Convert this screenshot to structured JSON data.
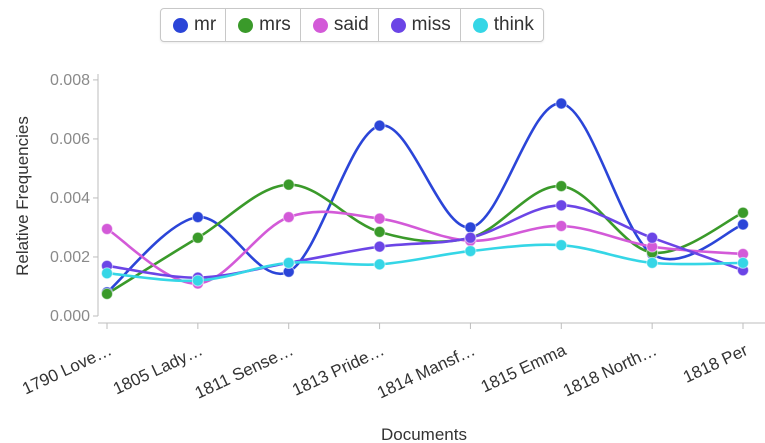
{
  "chart_data": {
    "type": "line",
    "xlabel": "Documents",
    "ylabel": "Relative Frequencies",
    "ylim": [
      0,
      0.0082
    ],
    "yticks": [
      "0.000",
      "0.002",
      "0.004",
      "0.006",
      "0.008"
    ],
    "grid": false,
    "legend_placement": "top",
    "categories": [
      "1790 Love…",
      "1805 Lady…",
      "1811 Sense…",
      "1813 Pride…",
      "1814 Mansf…",
      "1815 Emma",
      "1818 North…",
      "1818 Per"
    ],
    "series": [
      {
        "name": "mr",
        "color": "#2b45d8",
        "values": [
          0.0008,
          0.00335,
          0.0015,
          0.00645,
          0.003,
          0.0072,
          0.0021,
          0.0031
        ]
      },
      {
        "name": "mrs",
        "color": "#3a9a2a",
        "values": [
          0.00075,
          0.00265,
          0.00445,
          0.00285,
          0.00265,
          0.0044,
          0.00215,
          0.0035
        ]
      },
      {
        "name": "said",
        "color": "#d35ad8",
        "values": [
          0.00295,
          0.0011,
          0.00335,
          0.0033,
          0.00255,
          0.00305,
          0.00235,
          0.0021
        ]
      },
      {
        "name": "miss",
        "color": "#6b45e6",
        "values": [
          0.0017,
          0.0013,
          0.0018,
          0.00235,
          0.00265,
          0.00375,
          0.00265,
          0.00155
        ]
      },
      {
        "name": "think",
        "color": "#35d6e6",
        "values": [
          0.00145,
          0.0012,
          0.0018,
          0.00175,
          0.0022,
          0.0024,
          0.0018,
          0.0018
        ]
      }
    ]
  }
}
